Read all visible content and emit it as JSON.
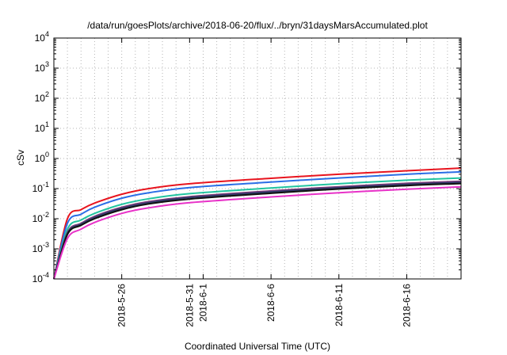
{
  "chart_data": {
    "type": "line",
    "title": "/data/run/goesPlots/archive/2018-06-20/flux/../bryn/31daysMarsAccumulated.plot",
    "xlabel": "Coordinated Universal Time (UTC)",
    "ylabel": "cSv",
    "y_scale": "log",
    "ylim": [
      0.0001,
      10000
    ],
    "xlim": [
      "2018-05-21",
      "2018-06-20"
    ],
    "grid": true,
    "y_ticks": [
      {
        "base": "10",
        "exp": "-4",
        "value": 0.0001
      },
      {
        "base": "10",
        "exp": "-3",
        "value": 0.001
      },
      {
        "base": "10",
        "exp": "-2",
        "value": 0.01
      },
      {
        "base": "10",
        "exp": "-1",
        "value": 0.1
      },
      {
        "base": "10",
        "exp": "0",
        "value": 1
      },
      {
        "base": "10",
        "exp": "1",
        "value": 10
      },
      {
        "base": "10",
        "exp": "2",
        "value": 100
      },
      {
        "base": "10",
        "exp": "3",
        "value": 1000
      },
      {
        "base": "10",
        "exp": "4",
        "value": 10000
      }
    ],
    "x_ticks": [
      {
        "label": "2018-5-26",
        "date": "2018-05-26"
      },
      {
        "label": "2018-5-31",
        "date": "2018-05-31"
      },
      {
        "label": "2018-6-1",
        "date": "2018-06-01"
      },
      {
        "label": "2018-6-6",
        "date": "2018-06-06"
      },
      {
        "label": "2018-6-11",
        "date": "2018-06-11"
      },
      {
        "label": "2018-6-16",
        "date": "2018-06-16"
      }
    ],
    "x": [
      "2018-05-21",
      "2018-05-22",
      "2018-05-23",
      "2018-05-24",
      "2018-05-26",
      "2018-05-28",
      "2018-05-31",
      "2018-06-06",
      "2018-06-11",
      "2018-06-16",
      "2018-06-20"
    ],
    "series": [
      {
        "color": "#e8141e",
        "values": [
          0.0001,
          0.01,
          0.02,
          0.033,
          0.065,
          0.1,
          0.145,
          0.22,
          0.3,
          0.39,
          0.48
        ]
      },
      {
        "color": "#2a6ee6",
        "values": [
          0.0001,
          0.007,
          0.014,
          0.024,
          0.048,
          0.073,
          0.108,
          0.165,
          0.225,
          0.3,
          0.36
        ]
      },
      {
        "color": "#22c4a0",
        "values": [
          0.0001,
          0.0045,
          0.009,
          0.015,
          0.03,
          0.046,
          0.068,
          0.105,
          0.145,
          0.19,
          0.225
        ]
      },
      {
        "color": "#7a3a78",
        "values": [
          0.0001,
          0.0035,
          0.007,
          0.012,
          0.024,
          0.037,
          0.054,
          0.084,
          0.115,
          0.15,
          0.175
        ]
      },
      {
        "color": "#2e3a6a",
        "values": [
          0.0001,
          0.0032,
          0.0065,
          0.011,
          0.022,
          0.034,
          0.05,
          0.077,
          0.106,
          0.138,
          0.16
        ]
      },
      {
        "color": "#111111",
        "values": [
          0.0001,
          0.003,
          0.006,
          0.01,
          0.02,
          0.031,
          0.045,
          0.07,
          0.097,
          0.126,
          0.147
        ]
      },
      {
        "color": "#e832c8",
        "values": [
          0.0001,
          0.0022,
          0.0045,
          0.0075,
          0.015,
          0.023,
          0.034,
          0.053,
          0.073,
          0.095,
          0.115
        ]
      }
    ]
  }
}
